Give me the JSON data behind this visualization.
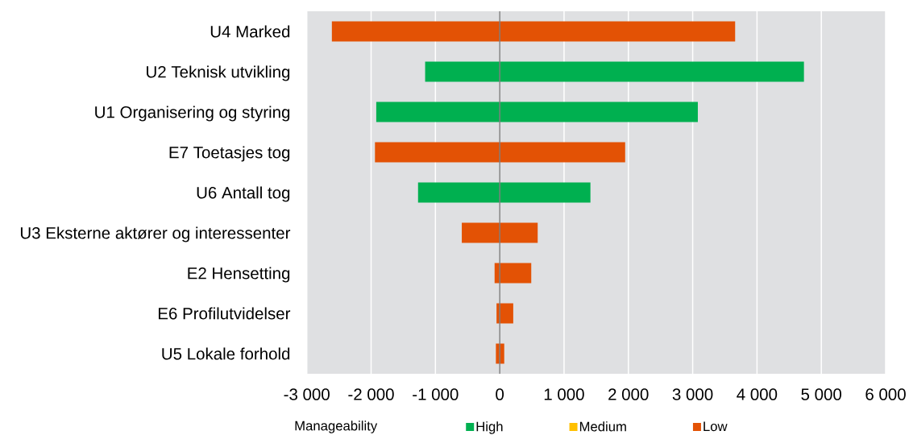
{
  "chart_data": {
    "type": "bar",
    "orientation": "horizontal",
    "categories": [
      "U4 Marked",
      "U2 Teknisk utvikling",
      "U1 Organisering og styring",
      "E7 Toetasjes tog",
      "U6 Antall tog",
      "U3 Eksterne aktører og interessenter",
      "E2 Hensetting",
      "E6 Profilutvidelser",
      "U5 Lokale forhold"
    ],
    "series": [
      {
        "name": "High",
        "color": "#00b050",
        "values": [
          null,
          5890,
          5000,
          null,
          2680,
          null,
          null,
          null,
          null
        ],
        "base": [
          null,
          -1160,
          -1920,
          null,
          -1270,
          null,
          null,
          null,
          null
        ]
      },
      {
        "name": "Medium",
        "color": "#ffc000",
        "values": [
          null,
          null,
          null,
          null,
          null,
          null,
          null,
          null,
          null
        ],
        "base": [
          null,
          null,
          null,
          null,
          null,
          null,
          null,
          null,
          null
        ]
      },
      {
        "name": "Low",
        "color": "#e35205",
        "values": [
          6270,
          null,
          null,
          3890,
          null,
          1180,
          570,
          260,
          130
        ],
        "base": [
          -2610,
          null,
          null,
          -1940,
          null,
          -590,
          -80,
          -50,
          -60
        ]
      }
    ],
    "xlim": [
      -3000,
      6000
    ],
    "xticks": [
      {
        "value": -3000,
        "label": "-3 000"
      },
      {
        "value": -2000,
        "label": "-2 000"
      },
      {
        "value": -1000,
        "label": "-1 000"
      },
      0,
      {
        "value": 1000,
        "label": "1 000"
      },
      {
        "value": 2000,
        "label": "2 000"
      },
      {
        "value": 3000,
        "label": "3 000"
      },
      {
        "value": 4000,
        "label": "4 000"
      },
      {
        "value": 5000,
        "label": "5 000"
      },
      {
        "value": 6000,
        "label": "6 000"
      }
    ],
    "grid": "x",
    "legend": "bottom",
    "legend_title": "Manageability",
    "ref_lines": [
      {
        "axis": "x",
        "value": 0,
        "color": "#7f7f7f"
      }
    ]
  }
}
